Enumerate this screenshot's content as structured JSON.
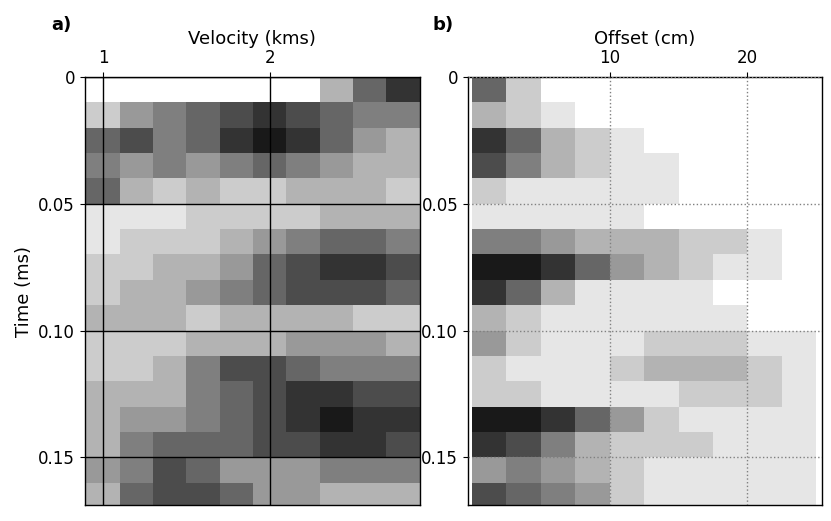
{
  "chart_data": [
    {
      "type": "heatmap",
      "panel_label": "a)",
      "xlabel": "Velocity (kms)",
      "ylabel": "Time (ms)",
      "xlim": [
        0.89,
        2.9
      ],
      "ylim": [
        0.169,
        0
      ],
      "xticks": [
        1,
        2
      ],
      "yticks": [
        0,
        0.05,
        {
          "value": 0.1,
          "label": "0.10"
        },
        0.15
      ],
      "grid": true,
      "line_style": "solid",
      "color": "#000000",
      "crange": [
        0,
        1
      ],
      "x_edges": [
        0.9,
        1.1,
        1.3,
        1.5,
        1.7,
        1.9,
        2.1,
        2.3,
        2.5,
        2.7,
        2.9
      ],
      "y_edges": [
        0,
        0.01,
        0.02,
        0.03,
        0.04,
        0.05,
        0.06,
        0.07,
        0.08,
        0.09,
        0.1,
        0.11,
        0.12,
        0.13,
        0.14,
        0.15,
        0.16,
        0.17
      ],
      "cells": [
        [
          0,
          0,
          0,
          0,
          0,
          0,
          0,
          0.3,
          0.6,
          0.8
        ],
        [
          0.2,
          0.4,
          0.5,
          0.6,
          0.7,
          0.8,
          0.7,
          0.6,
          0.5,
          0.5
        ],
        [
          0.6,
          0.7,
          0.5,
          0.6,
          0.8,
          0.9,
          0.8,
          0.6,
          0.4,
          0.3
        ],
        [
          0.5,
          0.4,
          0.5,
          0.4,
          0.5,
          0.6,
          0.5,
          0.4,
          0.3,
          0.3
        ],
        [
          0.6,
          0.3,
          0.2,
          0.3,
          0.2,
          0.2,
          0.3,
          0.3,
          0.3,
          0.2
        ],
        [
          0.1,
          0.1,
          0.1,
          0.2,
          0.2,
          0.2,
          0.2,
          0.3,
          0.3,
          0.3
        ],
        [
          0.1,
          0.2,
          0.2,
          0.2,
          0.3,
          0.4,
          0.5,
          0.6,
          0.6,
          0.5
        ],
        [
          0.2,
          0.2,
          0.3,
          0.3,
          0.4,
          0.6,
          0.7,
          0.8,
          0.8,
          0.7
        ],
        [
          0.2,
          0.3,
          0.3,
          0.4,
          0.5,
          0.6,
          0.7,
          0.7,
          0.7,
          0.6
        ],
        [
          0.3,
          0.3,
          0.3,
          0.2,
          0.3,
          0.3,
          0.3,
          0.3,
          0.2,
          0.2
        ],
        [
          0.2,
          0.2,
          0.2,
          0.3,
          0.3,
          0.3,
          0.4,
          0.4,
          0.4,
          0.3
        ],
        [
          0.2,
          0.2,
          0.3,
          0.5,
          0.7,
          0.7,
          0.6,
          0.5,
          0.5,
          0.5
        ],
        [
          0.3,
          0.3,
          0.3,
          0.5,
          0.6,
          0.7,
          0.8,
          0.8,
          0.7,
          0.7
        ],
        [
          0.3,
          0.4,
          0.4,
          0.5,
          0.6,
          0.7,
          0.8,
          0.9,
          0.8,
          0.8
        ],
        [
          0.3,
          0.5,
          0.6,
          0.6,
          0.6,
          0.7,
          0.7,
          0.8,
          0.8,
          0.7
        ],
        [
          0.4,
          0.5,
          0.7,
          0.6,
          0.4,
          0.4,
          0.4,
          0.5,
          0.5,
          0.5
        ],
        [
          0.3,
          0.6,
          0.7,
          0.7,
          0.6,
          0.4,
          0.4,
          0.3,
          0.3,
          0.3
        ]
      ]
    },
    {
      "type": "heatmap",
      "panel_label": "b)",
      "xlabel": "Offset (cm)",
      "xlim": [
        -0.3,
        25.4
      ],
      "ylim": [
        0.169,
        0
      ],
      "xticks": [
        10,
        20
      ],
      "yticks": [
        0,
        0.05,
        {
          "value": 0.1,
          "label": "0.10"
        },
        0.15
      ],
      "grid": true,
      "line_style": "dotted",
      "color": "#808080",
      "crange": [
        0,
        1
      ],
      "x_edges": [
        0,
        2.5,
        5,
        7.5,
        10,
        12.5,
        15,
        17.5,
        20,
        22.5,
        25
      ],
      "y_edges": [
        0,
        0.01,
        0.02,
        0.03,
        0.04,
        0.05,
        0.06,
        0.07,
        0.08,
        0.09,
        0.1,
        0.11,
        0.12,
        0.13,
        0.14,
        0.15,
        0.16,
        0.17
      ],
      "cells": [
        [
          0.6,
          0.2,
          0,
          0,
          0,
          0,
          0,
          0,
          0,
          0
        ],
        [
          0.3,
          0.2,
          0.1,
          0,
          0,
          0,
          0,
          0,
          0,
          0
        ],
        [
          0.8,
          0.6,
          0.3,
          0.2,
          0.1,
          0,
          0,
          0,
          0,
          0
        ],
        [
          0.7,
          0.5,
          0.3,
          0.2,
          0.1,
          0.1,
          0,
          0,
          0,
          0
        ],
        [
          0.2,
          0.1,
          0.1,
          0.1,
          0.1,
          0.1,
          0,
          0,
          0,
          0
        ],
        [
          0.1,
          0.1,
          0.1,
          0.1,
          0.1,
          0,
          0,
          0,
          0,
          0
        ],
        [
          0.5,
          0.5,
          0.4,
          0.3,
          0.3,
          0.3,
          0.2,
          0.2,
          0.1,
          0
        ],
        [
          0.9,
          0.9,
          0.8,
          0.6,
          0.4,
          0.3,
          0.2,
          0.1,
          0.1,
          0
        ],
        [
          0.8,
          0.6,
          0.3,
          0.1,
          0.1,
          0.1,
          0.1,
          0,
          0,
          0
        ],
        [
          0.3,
          0.2,
          0.1,
          0.1,
          0.1,
          0.1,
          0.1,
          0.1,
          0,
          0
        ],
        [
          0.4,
          0.2,
          0.1,
          0.1,
          0.1,
          0.2,
          0.2,
          0.2,
          0.1,
          0.1
        ],
        [
          0.2,
          0.1,
          0.1,
          0.1,
          0.2,
          0.3,
          0.3,
          0.3,
          0.2,
          0.1
        ],
        [
          0.2,
          0.2,
          0.1,
          0.1,
          0.1,
          0.1,
          0.2,
          0.2,
          0.2,
          0.1
        ],
        [
          0.9,
          0.9,
          0.8,
          0.6,
          0.4,
          0.2,
          0.1,
          0.1,
          0.1,
          0.1
        ],
        [
          0.8,
          0.7,
          0.5,
          0.3,
          0.2,
          0.2,
          0.2,
          0.1,
          0.1,
          0.1
        ],
        [
          0.4,
          0.5,
          0.4,
          0.3,
          0.2,
          0.1,
          0.1,
          0.1,
          0.1,
          0.1
        ],
        [
          0.7,
          0.6,
          0.5,
          0.4,
          0.2,
          0.1,
          0.1,
          0.1,
          0.1,
          0.1
        ]
      ]
    }
  ]
}
